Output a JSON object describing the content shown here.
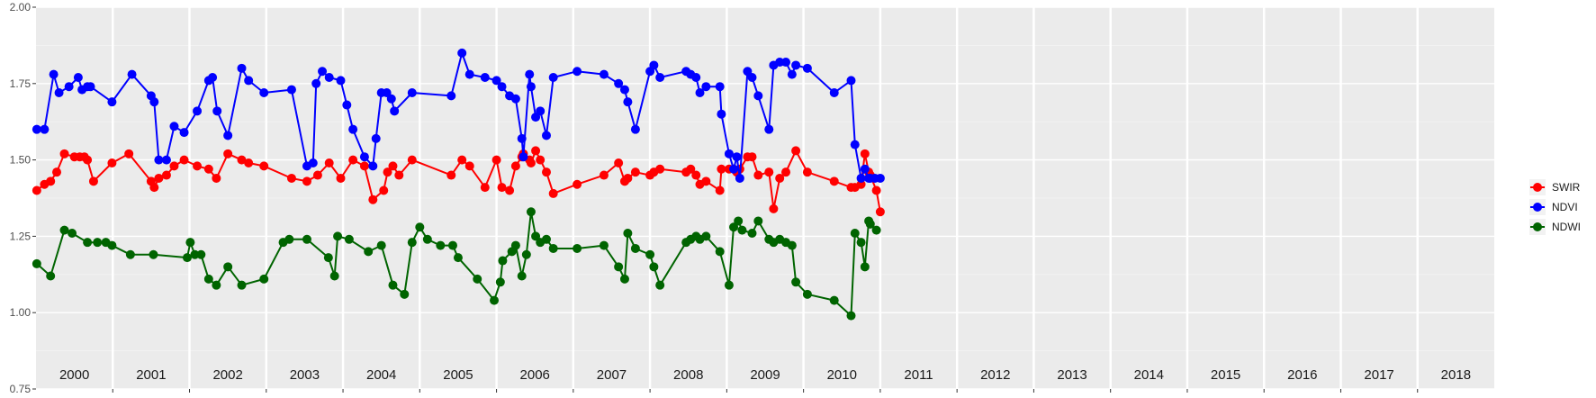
{
  "chart_data": {
    "type": "line",
    "title": "",
    "xlabel": "",
    "ylabel": "",
    "xlim": [
      1999.95,
      2018.95
    ],
    "ylim": [
      0.75,
      2.0
    ],
    "y_ticks": [
      0.75,
      1.0,
      1.25,
      1.5,
      1.75,
      2.0
    ],
    "y_tick_labels": [
      "0.75",
      "1.00",
      "1.25",
      "1.50",
      "1.75",
      "2.00"
    ],
    "year_labels": [
      "2000",
      "2001",
      "2002",
      "2003",
      "2004",
      "2005",
      "2006",
      "2007",
      "2008",
      "2009",
      "2010",
      "2011",
      "2012",
      "2013",
      "2014",
      "2015",
      "2016",
      "2017",
      "2018"
    ],
    "grid": true,
    "legend_position": "right",
    "series": [
      {
        "name": "SWIR",
        "color": "#ff0000",
        "x": [
          1999.96,
          2000.06,
          2000.14,
          2000.22,
          2000.32,
          2000.45,
          2000.52,
          2000.58,
          2000.62,
          2000.7,
          2000.94,
          2001.16,
          2001.45,
          2001.49,
          2001.55,
          2001.65,
          2001.75,
          2001.88,
          2002.05,
          2002.2,
          2002.3,
          2002.45,
          2002.63,
          2002.72,
          2002.92,
          2003.28,
          2003.48,
          2003.62,
          2003.77,
          2003.92,
          2004.08,
          2004.23,
          2004.34,
          2004.48,
          2004.53,
          2004.6,
          2004.68,
          2004.85,
          2005.36,
          2005.5,
          2005.6,
          2005.8,
          2005.95,
          2006.02,
          2006.12,
          2006.2,
          2006.28,
          2006.3,
          2006.38,
          2006.4,
          2006.46,
          2006.52,
          2006.6,
          2006.69,
          2007.0,
          2007.35,
          2007.54,
          2007.62,
          2007.66,
          2007.76,
          2007.95,
          2008.0,
          2008.08,
          2008.42,
          2008.48,
          2008.55,
          2008.6,
          2008.68,
          2008.86,
          2008.88,
          2008.98,
          2009.04,
          2009.08,
          2009.12,
          2009.22,
          2009.28,
          2009.36,
          2009.5,
          2009.56,
          2009.64,
          2009.72,
          2009.85,
          2010.0,
          2010.35,
          2010.57,
          2010.62,
          2010.7,
          2010.75,
          2010.8,
          2010.82,
          2010.9,
          2010.95
        ],
        "y": [
          1.4,
          1.42,
          1.43,
          1.46,
          1.52,
          1.51,
          1.51,
          1.51,
          1.5,
          1.43,
          1.49,
          1.52,
          1.43,
          1.41,
          1.44,
          1.45,
          1.48,
          1.5,
          1.48,
          1.47,
          1.44,
          1.52,
          1.5,
          1.49,
          1.48,
          1.44,
          1.43,
          1.45,
          1.49,
          1.44,
          1.5,
          1.48,
          1.37,
          1.4,
          1.46,
          1.48,
          1.45,
          1.5,
          1.45,
          1.5,
          1.48,
          1.41,
          1.5,
          1.41,
          1.4,
          1.48,
          1.51,
          1.52,
          1.5,
          1.49,
          1.53,
          1.5,
          1.46,
          1.39,
          1.42,
          1.45,
          1.49,
          1.43,
          1.44,
          1.46,
          1.45,
          1.46,
          1.47,
          1.46,
          1.47,
          1.45,
          1.42,
          1.43,
          1.4,
          1.47,
          1.47,
          1.47,
          1.46,
          1.47,
          1.51,
          1.51,
          1.45,
          1.46,
          1.34,
          1.44,
          1.46,
          1.53,
          1.46,
          1.43,
          1.41,
          1.41,
          1.42,
          1.52,
          1.46,
          1.45,
          1.4,
          1.33
        ]
      },
      {
        "name": "NDVI",
        "color": "#0000ff",
        "x": [
          1999.96,
          2000.06,
          2000.18,
          2000.25,
          2000.38,
          2000.5,
          2000.55,
          2000.62,
          2000.66,
          2000.94,
          2001.2,
          2001.45,
          2001.49,
          2001.55,
          2001.65,
          2001.75,
          2001.88,
          2002.05,
          2002.2,
          2002.25,
          2002.31,
          2002.45,
          2002.63,
          2002.72,
          2002.92,
          2003.28,
          2003.48,
          2003.56,
          2003.6,
          2003.68,
          2003.77,
          2003.92,
          2004.0,
          2004.08,
          2004.23,
          2004.34,
          2004.38,
          2004.45,
          2004.52,
          2004.58,
          2004.62,
          2004.85,
          2005.36,
          2005.5,
          2005.6,
          2005.8,
          2005.95,
          2006.02,
          2006.12,
          2006.2,
          2006.28,
          2006.3,
          2006.38,
          2006.4,
          2006.46,
          2006.52,
          2006.6,
          2006.69,
          2007.0,
          2007.35,
          2007.54,
          2007.62,
          2007.66,
          2007.76,
          2007.95,
          2008.0,
          2008.08,
          2008.42,
          2008.48,
          2008.55,
          2008.6,
          2008.68,
          2008.86,
          2008.88,
          2008.98,
          2009.04,
          2009.08,
          2009.12,
          2009.22,
          2009.28,
          2009.36,
          2009.5,
          2009.56,
          2009.64,
          2009.72,
          2009.8,
          2009.85,
          2010.0,
          2010.35,
          2010.57,
          2010.62,
          2010.7,
          2010.75,
          2010.8,
          2010.82,
          2010.88,
          2010.95
        ],
        "y": [
          1.6,
          1.6,
          1.78,
          1.72,
          1.74,
          1.77,
          1.73,
          1.74,
          1.74,
          1.69,
          1.78,
          1.71,
          1.69,
          1.5,
          1.5,
          1.61,
          1.59,
          1.66,
          1.76,
          1.77,
          1.66,
          1.58,
          1.8,
          1.76,
          1.72,
          1.73,
          1.48,
          1.49,
          1.75,
          1.79,
          1.77,
          1.76,
          1.68,
          1.6,
          1.51,
          1.48,
          1.57,
          1.72,
          1.72,
          1.7,
          1.66,
          1.72,
          1.71,
          1.85,
          1.78,
          1.77,
          1.76,
          1.74,
          1.71,
          1.7,
          1.57,
          1.51,
          1.78,
          1.74,
          1.64,
          1.66,
          1.58,
          1.77,
          1.79,
          1.78,
          1.75,
          1.73,
          1.69,
          1.6,
          1.79,
          1.81,
          1.77,
          1.79,
          1.78,
          1.77,
          1.72,
          1.74,
          1.74,
          1.65,
          1.52,
          1.47,
          1.51,
          1.44,
          1.79,
          1.77,
          1.71,
          1.6,
          1.81,
          1.82,
          1.82,
          1.78,
          1.81,
          1.8,
          1.72,
          1.76,
          1.55,
          1.44,
          1.47,
          1.44,
          1.44,
          1.44,
          1.44
        ]
      },
      {
        "name": "NDWI",
        "color": "#006400",
        "x": [
          1999.96,
          2000.14,
          2000.32,
          2000.42,
          2000.62,
          2000.75,
          2000.86,
          2000.94,
          2001.18,
          2001.48,
          2001.92,
          2001.96,
          2002.02,
          2002.1,
          2002.2,
          2002.3,
          2002.45,
          2002.63,
          2002.92,
          2003.17,
          2003.25,
          2003.48,
          2003.76,
          2003.84,
          2003.88,
          2004.03,
          2004.28,
          2004.45,
          2004.6,
          2004.75,
          2004.85,
          2004.95,
          2005.05,
          2005.22,
          2005.38,
          2005.45,
          2005.7,
          2005.92,
          2006.0,
          2006.03,
          2006.15,
          2006.2,
          2006.28,
          2006.34,
          2006.4,
          2006.46,
          2006.52,
          2006.6,
          2006.69,
          2007.0,
          2007.35,
          2007.54,
          2007.62,
          2007.66,
          2007.76,
          2007.95,
          2008.0,
          2008.08,
          2008.42,
          2008.48,
          2008.55,
          2008.6,
          2008.68,
          2008.86,
          2008.98,
          2009.04,
          2009.1,
          2009.15,
          2009.28,
          2009.36,
          2009.5,
          2009.56,
          2009.64,
          2009.72,
          2009.8,
          2009.85,
          2010.0,
          2010.35,
          2010.57,
          2010.62,
          2010.7,
          2010.75,
          2010.8,
          2010.82,
          2010.9
        ],
        "y": [
          1.16,
          1.12,
          1.27,
          1.26,
          1.23,
          1.23,
          1.23,
          1.22,
          1.19,
          1.19,
          1.18,
          1.23,
          1.19,
          1.19,
          1.11,
          1.09,
          1.15,
          1.09,
          1.11,
          1.23,
          1.24,
          1.24,
          1.18,
          1.12,
          1.25,
          1.24,
          1.2,
          1.22,
          1.09,
          1.06,
          1.23,
          1.28,
          1.24,
          1.22,
          1.22,
          1.18,
          1.11,
          1.04,
          1.1,
          1.17,
          1.2,
          1.22,
          1.12,
          1.19,
          1.33,
          1.25,
          1.23,
          1.24,
          1.21,
          1.21,
          1.22,
          1.15,
          1.11,
          1.26,
          1.21,
          1.19,
          1.15,
          1.09,
          1.23,
          1.24,
          1.25,
          1.24,
          1.25,
          1.2,
          1.09,
          1.28,
          1.3,
          1.27,
          1.26,
          1.3,
          1.24,
          1.23,
          1.24,
          1.23,
          1.22,
          1.1,
          1.06,
          1.04,
          0.99,
          1.26,
          1.23,
          1.15,
          1.3,
          1.29,
          1.27
        ]
      }
    ]
  }
}
